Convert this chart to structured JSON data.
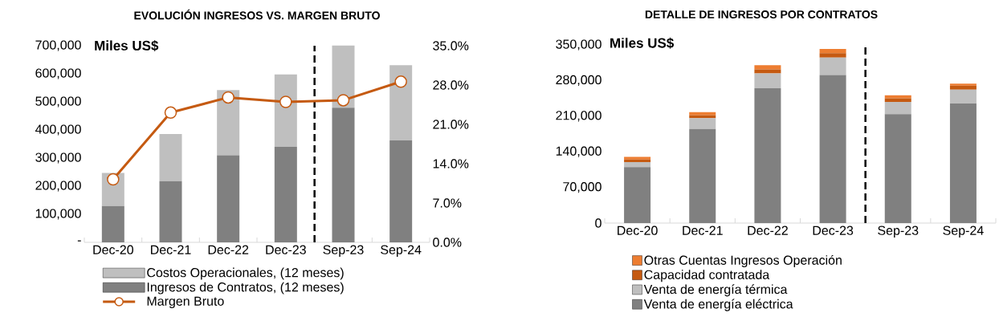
{
  "chart_data": [
    {
      "type": "bar",
      "title": "EVOLUCIÓN INGRESOS VS. MARGEN BRUTO",
      "annotations": [
        "Miles US$"
      ],
      "categories": [
        "Dec-20",
        "Dec-21",
        "Dec-22",
        "Dec-23",
        "Sep-23",
        "Sep-24"
      ],
      "stacked": true,
      "series": [
        {
          "name": "Ingresos de Contratos, (12 meses)",
          "color": "#808080",
          "values": [
            129000,
            218000,
            310000,
            340000,
            479000,
            363000
          ]
        },
        {
          "name": "Costos Operacionales, (12 meses)",
          "color": "#bfbfbf",
          "values": [
            118000,
            168000,
            232000,
            258000,
            222000,
            268000
          ]
        },
        {
          "name": "Margen Bruto",
          "type": "line",
          "axis": "y2",
          "color": "#c55a11",
          "values": [
            11.2,
            23.1,
            25.8,
            25.0,
            25.3,
            28.6
          ]
        }
      ],
      "ylim": [
        0,
        700000
      ],
      "yticks": [
        {
          "value": 0,
          "label": "-"
        },
        {
          "value": 100000,
          "label": "100,000"
        },
        {
          "value": 200000,
          "label": "200,000"
        },
        {
          "value": 300000,
          "label": "300,000"
        },
        {
          "value": 400000,
          "label": "400,000"
        },
        {
          "value": 500000,
          "label": "500,000"
        },
        {
          "value": 600000,
          "label": "600,000"
        },
        {
          "value": 700000,
          "label": "700,000"
        }
      ],
      "y2lim": [
        0,
        35
      ],
      "y2ticks": [
        {
          "value": 0,
          "label": "0.0%"
        },
        {
          "value": 7,
          "label": "7.0%"
        },
        {
          "value": 14,
          "label": "14.0%"
        },
        {
          "value": 21,
          "label": "21.0%"
        },
        {
          "value": 28,
          "label": "28.0%"
        },
        {
          "value": 35,
          "label": "35.0%"
        }
      ],
      "marker": "circle",
      "legend": "bottom",
      "grid": false
    },
    {
      "type": "bar",
      "title": "DETALLE DE INGRESOS POR CONTRATOS",
      "annotations": [
        "Miles US$"
      ],
      "categories": [
        "Dec-20",
        "Dec-21",
        "Dec-22",
        "Dec-23",
        "Sep-23",
        "Sep-24"
      ],
      "stacked": true,
      "series": [
        {
          "name": "Venta de energía eléctrica",
          "color": "#808080",
          "values": [
            110000,
            185000,
            265000,
            291000,
            214000,
            235000
          ]
        },
        {
          "name": "Venta de energía térmica",
          "color": "#bfbfbf",
          "values": [
            10000,
            21000,
            29000,
            34000,
            24000,
            27000
          ]
        },
        {
          "name": "Capacidad contratada",
          "color": "#c55a11",
          "values": [
            5000,
            6000,
            8000,
            9000,
            7000,
            8000
          ]
        },
        {
          "name": "Otras Cuentas Ingresos Operación",
          "color": "#ed7d31",
          "values": [
            5000,
            6000,
            8000,
            8000,
            6000,
            4000
          ]
        }
      ],
      "ylim": [
        0,
        350000
      ],
      "yticks": [
        0,
        {
          "value": 70000,
          "label": "70,000"
        },
        {
          "value": 140000,
          "label": "140,000"
        },
        {
          "value": 210000,
          "label": "210,000"
        },
        {
          "value": 280000,
          "label": "280,000"
        },
        {
          "value": 350000,
          "label": "350,000"
        }
      ],
      "legend": "bottom",
      "grid": false
    }
  ]
}
